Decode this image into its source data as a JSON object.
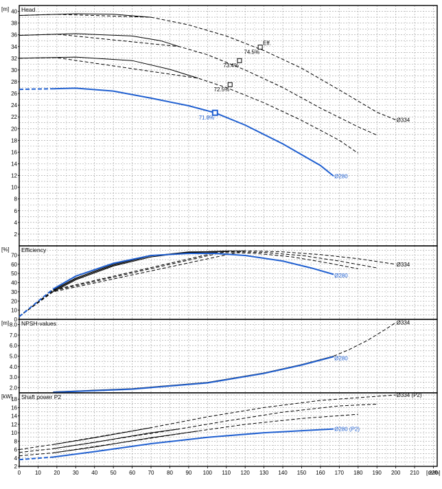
{
  "chart_data": [
    {
      "type": "line",
      "title": "Head",
      "unit": "[m]",
      "ylim": [
        0,
        41
      ],
      "yticks": [
        2,
        4,
        6,
        8,
        10,
        12,
        14,
        16,
        18,
        20,
        22,
        24,
        26,
        28,
        30,
        32,
        34,
        36,
        38,
        40
      ],
      "series": [
        {
          "name": "Ø334",
          "color": "#000000",
          "solid": [
            [
              0,
              39.3
            ],
            [
              30,
              39.6
            ],
            [
              50,
              39.5
            ],
            [
              70,
              39.0
            ]
          ],
          "dashed": [
            [
              0,
              39.3
            ],
            [
              20,
              39.5
            ],
            [
              70,
              39.0
            ],
            [
              90,
              37.7
            ],
            [
              110,
              35.8
            ],
            [
              130,
              33.3
            ],
            [
              150,
              30.3
            ],
            [
              170,
              26.6
            ],
            [
              190,
              22.8
            ],
            [
              200,
              21.5
            ]
          ]
        },
        {
          "name": "",
          "color": "#000000",
          "solid": [
            [
              0,
              35.9
            ],
            [
              30,
              36.2
            ],
            [
              60,
              35.8
            ],
            [
              75,
              35.0
            ],
            [
              85,
              34.0
            ]
          ],
          "dashed": [
            [
              0,
              35.9
            ],
            [
              20,
              36.1
            ],
            [
              85,
              34.0
            ],
            [
              100,
              32.6
            ],
            [
              120,
              30.0
            ],
            [
              140,
              27.0
            ],
            [
              160,
              23.5
            ],
            [
              180,
              20.3
            ],
            [
              190,
              18.9
            ]
          ]
        },
        {
          "name": "",
          "color": "#000000",
          "solid": [
            [
              0,
              32.0
            ],
            [
              30,
              32.2
            ],
            [
              60,
              31.6
            ],
            [
              80,
              30.1
            ],
            [
              95,
              28.6
            ]
          ],
          "dashed": [
            [
              0,
              32.0
            ],
            [
              20,
              32.1
            ],
            [
              95,
              28.6
            ],
            [
              110,
              27.0
            ],
            [
              130,
              24.4
            ],
            [
              150,
              21.4
            ],
            [
              170,
              18.0
            ],
            [
              180,
              15.8
            ]
          ]
        },
        {
          "name": "Ø280",
          "color": "#1f5fd0",
          "solid": [
            [
              18,
              26.8
            ],
            [
              30,
              26.9
            ],
            [
              50,
              26.4
            ],
            [
              70,
              25.2
            ],
            [
              90,
              23.9
            ],
            [
              104,
              22.7
            ],
            [
              120,
              20.6
            ],
            [
              140,
              17.4
            ],
            [
              160,
              13.7
            ],
            [
              167,
              11.9
            ]
          ],
          "dashed": [
            [
              0,
              26.7
            ],
            [
              18,
              26.8
            ]
          ]
        }
      ],
      "points": [
        {
          "label": "Eff.",
          "x": 128,
          "y": 33.9,
          "color": "#000000"
        },
        {
          "label": "74.5%",
          "x": 128,
          "y": 33.9,
          "color": "#000000"
        },
        {
          "label": "73.4%",
          "x": 117,
          "y": 31.6,
          "color": "#000000"
        },
        {
          "label": "72.5%",
          "x": 112,
          "y": 27.5,
          "color": "#000000"
        },
        {
          "label": "71.8%",
          "x": 104,
          "y": 22.7,
          "color": "#1f5fd0"
        }
      ],
      "end_labels": [
        {
          "text": "Ø334",
          "x": 200,
          "y": 21.5,
          "color": "#000000"
        },
        {
          "text": "Ø280",
          "x": 167,
          "y": 11.9,
          "color": "#1f5fd0"
        }
      ]
    },
    {
      "type": "line",
      "title": "Efficiency",
      "unit": "[%]",
      "ylim": [
        0,
        80
      ],
      "yticks": [
        0,
        10,
        20,
        30,
        40,
        50,
        60,
        70
      ],
      "series": [
        {
          "name": "Ø334",
          "color": "#000000",
          "solid": [
            [
              18,
              30
            ],
            [
              30,
              43
            ],
            [
              50,
              58
            ],
            [
              70,
              68
            ],
            [
              90,
              73
            ],
            [
              110,
              74.5
            ],
            [
              120,
              74.6
            ]
          ],
          "dashed": [
            [
              0,
              3
            ],
            [
              18,
              30
            ],
            [
              120,
              74.6
            ],
            [
              140,
              73.5
            ],
            [
              160,
              70.5
            ],
            [
              180,
              66
            ],
            [
              200,
              60
            ]
          ]
        },
        {
          "name": "",
          "color": "#000000",
          "solid": [
            [
              18,
              31
            ],
            [
              30,
              44
            ],
            [
              50,
              59
            ],
            [
              70,
              69
            ],
            [
              90,
              73.5
            ],
            [
              110,
              73.8
            ]
          ],
          "dashed": [
            [
              0,
              3
            ],
            [
              18,
              31
            ],
            [
              110,
              73.8
            ],
            [
              130,
              72.8
            ],
            [
              150,
              69.5
            ],
            [
              170,
              63.5
            ],
            [
              190,
              56
            ]
          ]
        },
        {
          "name": "",
          "color": "#000000",
          "solid": [
            [
              18,
              32
            ],
            [
              30,
              45
            ],
            [
              50,
              60
            ],
            [
              70,
              69.5
            ],
            [
              90,
              72.5
            ],
            [
              105,
              72.8
            ]
          ],
          "dashed": [
            [
              0,
              3
            ],
            [
              18,
              32
            ],
            [
              105,
              72.8
            ],
            [
              125,
              72
            ],
            [
              145,
              68
            ],
            [
              165,
              61
            ],
            [
              180,
              55
            ]
          ]
        },
        {
          "name": "Ø280",
          "color": "#1f5fd0",
          "solid": [
            [
              18,
              33
            ],
            [
              30,
              47
            ],
            [
              50,
              61
            ],
            [
              70,
              69.5
            ],
            [
              90,
              71.8
            ],
            [
              104,
              71.8
            ],
            [
              120,
              69.5
            ],
            [
              140,
              63.5
            ],
            [
              155,
              56
            ],
            [
              167,
              49
            ]
          ],
          "dashed": [
            [
              0,
              3
            ],
            [
              18,
              33
            ]
          ]
        }
      ],
      "points": [],
      "end_labels": [
        {
          "text": "Ø334",
          "x": 200,
          "y": 60,
          "color": "#000000"
        },
        {
          "text": "Ø280",
          "x": 167,
          "y": 48,
          "color": "#1f5fd0"
        }
      ]
    },
    {
      "type": "line",
      "title": "NPSH-values",
      "unit": "[m]",
      "ylim": [
        1.5,
        8.5
      ],
      "yticks": [
        2.0,
        3.0,
        4.0,
        5.0,
        6.0,
        7.0,
        8.0
      ],
      "series": [
        {
          "name": "Ø334",
          "color": "#000000",
          "solid": [],
          "dashed": [
            [
              167,
              5.0
            ],
            [
              175,
              5.6
            ],
            [
              185,
              6.5
            ],
            [
              195,
              7.6
            ],
            [
              200,
              8.2
            ]
          ]
        },
        {
          "name": "",
          "color": "#000000",
          "solid": [
            [
              18,
              1.6
            ],
            [
              60,
              1.9
            ],
            [
              100,
              2.5
            ],
            [
              130,
              3.4
            ],
            [
              150,
              4.2
            ],
            [
              167,
              5.0
            ]
          ],
          "dashed": []
        },
        {
          "name": "Ø280",
          "color": "#1f5fd0",
          "solid": [
            [
              18,
              1.55
            ],
            [
              60,
              1.85
            ],
            [
              100,
              2.45
            ],
            [
              130,
              3.35
            ],
            [
              150,
              4.15
            ],
            [
              167,
              4.95
            ]
          ],
          "dashed": []
        }
      ],
      "points": [],
      "end_labels": [
        {
          "text": "Ø334",
          "x": 200,
          "y": 8.2,
          "color": "#000000"
        },
        {
          "text": "Ø280",
          "x": 167,
          "y": 4.8,
          "color": "#1f5fd0"
        }
      ]
    },
    {
      "type": "line",
      "title": "Shaft power P2",
      "unit": "[kW]",
      "ylim": [
        2,
        19.5
      ],
      "yticks": [
        2,
        4,
        6,
        8,
        10,
        12,
        14,
        16,
        18
      ],
      "series": [
        {
          "name": "Ø334 (P2)",
          "color": "#000000",
          "solid": [
            [
              18,
              7.2
            ],
            [
              40,
              8.8
            ],
            [
              70,
              11.2
            ]
          ],
          "dashed": [
            [
              0,
              6.0
            ],
            [
              18,
              7.2
            ],
            [
              70,
              11.2
            ],
            [
              100,
              13.8
            ],
            [
              130,
              16.0
            ],
            [
              160,
              17.7
            ],
            [
              200,
              19.0
            ]
          ]
        },
        {
          "name": "",
          "color": "#000000",
          "solid": [
            [
              18,
              6.2
            ],
            [
              40,
              7.7
            ],
            [
              70,
              10.0
            ],
            [
              85,
              10.9
            ]
          ],
          "dashed": [
            [
              0,
              5.3
            ],
            [
              18,
              6.2
            ],
            [
              85,
              10.9
            ],
            [
              110,
              12.8
            ],
            [
              140,
              14.9
            ],
            [
              170,
              16.4
            ],
            [
              190,
              16.8
            ]
          ]
        },
        {
          "name": "",
          "color": "#000000",
          "solid": [
            [
              18,
              5.2
            ],
            [
              40,
              6.6
            ],
            [
              70,
              8.8
            ],
            [
              95,
              10.4
            ]
          ],
          "dashed": [
            [
              0,
              4.5
            ],
            [
              18,
              5.2
            ],
            [
              95,
              10.4
            ],
            [
              120,
              12.0
            ],
            [
              150,
              13.4
            ],
            [
              180,
              14.4
            ]
          ]
        },
        {
          "name": "Ø280 (P2)",
          "color": "#1f5fd0",
          "solid": [
            [
              18,
              4.2
            ],
            [
              40,
              5.5
            ],
            [
              70,
              7.4
            ],
            [
              100,
              8.9
            ],
            [
              130,
              10.0
            ],
            [
              167,
              10.9
            ]
          ],
          "dashed": [
            [
              0,
              3.6
            ],
            [
              18,
              4.2
            ]
          ]
        }
      ],
      "points": [],
      "end_labels": [
        {
          "text": "Ø334 (P2)",
          "x": 200,
          "y": 19.0,
          "color": "#000000"
        },
        {
          "text": "Ø280 (P2)",
          "x": 167,
          "y": 10.9,
          "color": "#1f5fd0"
        }
      ]
    }
  ],
  "x_axis": {
    "unit": "[m³/h]",
    "xlim": [
      0,
      222
    ],
    "ticks": [
      0,
      10,
      20,
      30,
      40,
      50,
      60,
      70,
      80,
      90,
      100,
      110,
      120,
      130,
      140,
      150,
      160,
      170,
      180,
      190,
      200,
      210,
      220
    ]
  },
  "colors": {
    "grid": "#9a9a9a",
    "frame": "#000000",
    "primary": "#000000",
    "highlight": "#1f5fd0"
  }
}
